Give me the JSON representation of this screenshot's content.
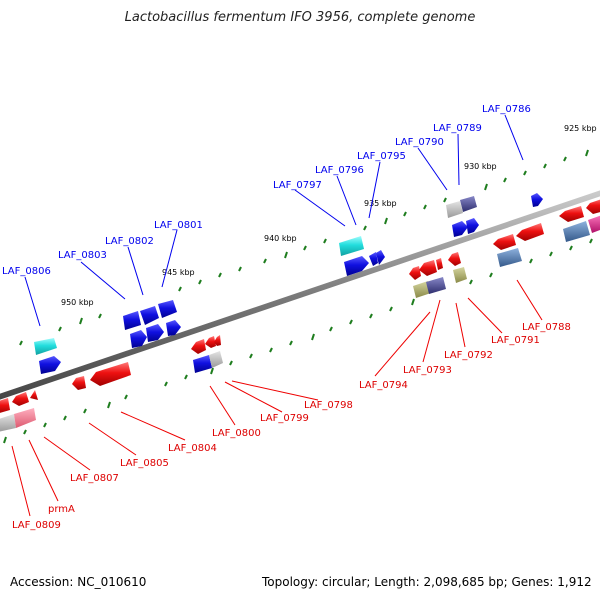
{
  "title": "Lactobacillus fermentum IFO 3956, complete genome",
  "footer": {
    "accession": "Accession: NC_010610",
    "stats": "Topology: circular; Length: 2,098,685 bp; Genes: 1,912"
  },
  "colors": {
    "forward": "#1010e0",
    "reverse": "#ee1111",
    "rna": "#22dddd",
    "backbone": "#8a8a8a",
    "ticks": "#1e7d1e",
    "gray_gene": "#a8a8a8",
    "slate_gene": "#4a6fa5",
    "olive_gene": "#a8a86a",
    "indigo_gene": "#4a4a90",
    "pink_gene": "#ee6688",
    "magenta_gene": "#e0208a"
  },
  "scale_labels": [
    "925 kbp",
    "930 kbp",
    "935 kbp",
    "940 kbp",
    "945 kbp",
    "950 kbp"
  ],
  "top_labels": [
    "LAF_0786",
    "LAF_0789",
    "LAF_0790",
    "LAF_0795",
    "LAF_0796",
    "LAF_0797",
    "LAF_0801",
    "LAF_0802",
    "LAF_0803",
    "LAF_0806"
  ],
  "bottom_labels": [
    "LAF_0788",
    "LAF_0791",
    "LAF_0792",
    "LAF_0793",
    "LAF_0794",
    "LAF_0798",
    "LAF_0799",
    "LAF_0800",
    "LAF_0804",
    "LAF_0805",
    "LAF_0807",
    "prmA",
    "LAF_0809"
  ]
}
